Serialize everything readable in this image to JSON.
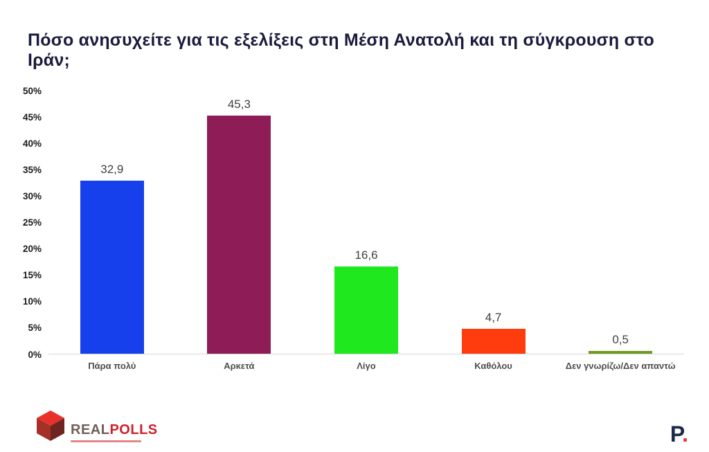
{
  "title": "Πόσο ανησυχείτε για τις εξελίξεις στη Μέση Ανατολή και τη σύγκρουση στο Ιράν;",
  "chart_data": {
    "type": "bar",
    "categories": [
      "Πάρα πολύ",
      "Αρκετά",
      "Λίγο",
      "Καθόλου",
      "Δεν γνωρίζω/Δεν απαντώ"
    ],
    "values": [
      32.9,
      45.3,
      16.6,
      4.7,
      0.5
    ],
    "value_labels": [
      "32,9",
      "45,3",
      "16,6",
      "4,7",
      "0,5"
    ],
    "bar_colors": [
      "#1640ec",
      "#8e1d57",
      "#1fe81f",
      "#fe3c0e",
      "#6f9a22"
    ],
    "ylim": [
      0,
      50
    ],
    "ytick_values": [
      0,
      5,
      10,
      15,
      20,
      25,
      30,
      35,
      40,
      45,
      50
    ],
    "yticks": [
      "0%",
      "5%",
      "10%",
      "15%",
      "20%",
      "25%",
      "30%",
      "35%",
      "40%",
      "45%",
      "50%"
    ],
    "grid": false,
    "legend": false
  },
  "footer": {
    "left_logo": {
      "text_real": "REAL",
      "text_polls": "POLLS"
    },
    "right_logo": {
      "letter": "P",
      "dot": "."
    }
  }
}
